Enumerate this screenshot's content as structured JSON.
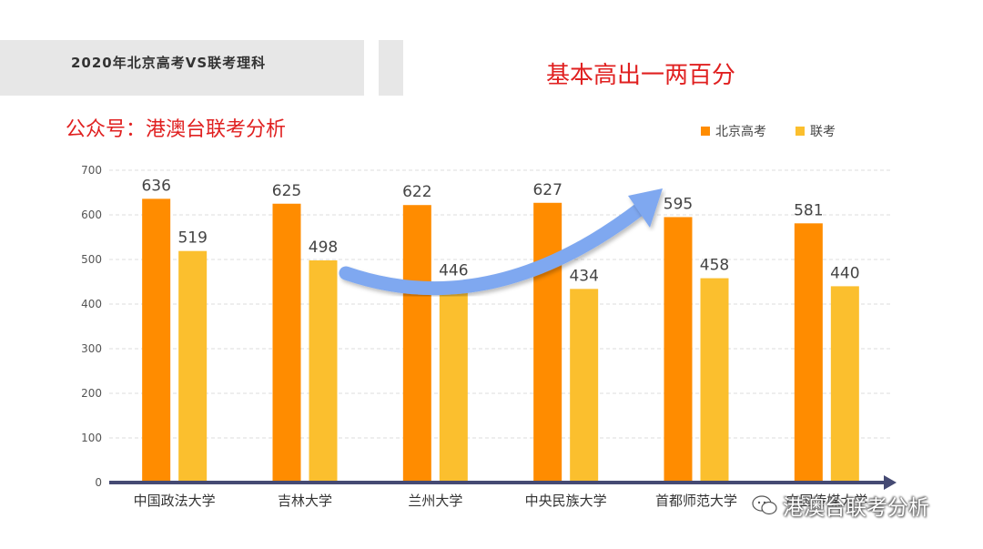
{
  "header": {
    "title": "2020年北京高考VS联考理科"
  },
  "headline": "基本高出一两百分",
  "subtitle": "公众号：港澳台联考分析",
  "watermark": {
    "text": "港澳台联考分析",
    "icon": "wechat-icon"
  },
  "chart_data": {
    "type": "bar",
    "title": "",
    "xlabel": "",
    "ylabel": "",
    "categories": [
      "中国政法大学",
      "吉林大学",
      "兰州大学",
      "中央民族大学",
      "首都师范大学",
      "中国传媒大学"
    ],
    "series": [
      {
        "name": "北京高考",
        "values": [
          636,
          625,
          622,
          627,
          595,
          581
        ],
        "color": "#ff8c00"
      },
      {
        "name": "联考",
        "values": [
          519,
          498,
          446,
          434,
          458,
          440
        ],
        "color": "#fbbf2e"
      }
    ],
    "ylim": [
      0,
      700
    ],
    "yticks": [
      0,
      100,
      200,
      300,
      400,
      500,
      600,
      700
    ],
    "grid": true,
    "legend": "top-right",
    "axis_color": "#454a73",
    "arrow_color": "#7fa8f0"
  }
}
